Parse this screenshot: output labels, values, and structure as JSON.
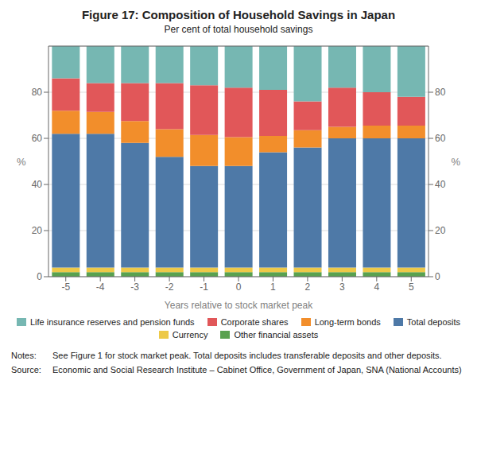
{
  "chart_data": {
    "type": "bar",
    "title": "Figure 17: Composition of Household Savings in Japan",
    "subtitle": "Per cent of total household savings",
    "xlabel": "Years relative to stock market peak",
    "ylabel": "%",
    "y2label": "%",
    "categories": [
      "-5",
      "-4",
      "-3",
      "-2",
      "-1",
      "0",
      "1",
      "2",
      "3",
      "4",
      "5"
    ],
    "series": [
      {
        "name": "Other financial assets",
        "color": "#59a14f",
        "values": [
          2.0,
          2.0,
          2.0,
          2.0,
          2.0,
          2.0,
          2.0,
          2.0,
          2.0,
          2.0,
          2.0
        ]
      },
      {
        "name": "Currency",
        "color": "#edc948",
        "values": [
          2.0,
          2.0,
          2.0,
          2.0,
          2.0,
          2.0,
          2.0,
          2.0,
          2.0,
          2.0,
          2.0
        ]
      },
      {
        "name": "Total deposits",
        "color": "#4e79a7",
        "values": [
          58.0,
          58.0,
          54.0,
          48.0,
          44.0,
          44.0,
          50.0,
          52.0,
          56.0,
          56.0,
          56.0
        ]
      },
      {
        "name": "Long-term bonds",
        "color": "#f28e2b",
        "values": [
          10.0,
          9.5,
          9.5,
          12.0,
          13.5,
          12.5,
          7.0,
          7.5,
          5.0,
          5.5,
          5.5
        ]
      },
      {
        "name": "Corporate shares",
        "color": "#e15759",
        "values": [
          14.0,
          12.5,
          16.5,
          20.0,
          21.5,
          21.5,
          20.0,
          12.5,
          17.0,
          14.5,
          12.5
        ]
      },
      {
        "name": "Life insurance reserves and pension funds",
        "color": "#76b7b2",
        "values": [
          14.0,
          16.0,
          16.0,
          16.0,
          17.0,
          18.0,
          19.0,
          24.0,
          18.0,
          20.0,
          22.0
        ]
      }
    ],
    "stacked": true,
    "ylim": [
      0,
      100
    ],
    "yticks": [
      0,
      20,
      40,
      60,
      80
    ],
    "y2lim": [
      0,
      100
    ],
    "y2ticks": [
      0,
      20,
      40,
      60,
      80
    ],
    "grid": true,
    "legend": "bottom",
    "annotations": [
      {
        "label": "Notes:",
        "text": "See Figure 1 for stock market peak. Total deposits includes transferable deposits and other deposits."
      },
      {
        "label": "Source:",
        "text": "Economic and Social Research Institute – Cabinet Office, Government of Japan, SNA (National Accounts)"
      }
    ]
  }
}
